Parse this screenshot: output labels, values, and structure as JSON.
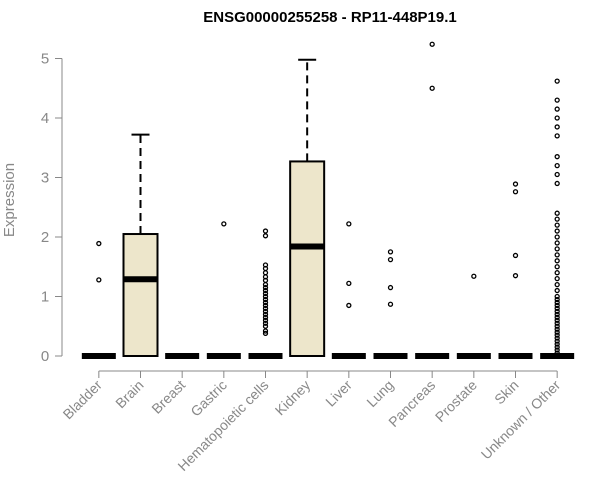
{
  "chart_data": {
    "type": "box",
    "title": "ENSG00000255258 - RP11-448P19.1",
    "xlabel": "",
    "ylabel": "Expression",
    "ylim": [
      0,
      5.25
    ],
    "yticks": [
      0,
      1,
      2,
      3,
      4,
      5
    ],
    "categories": [
      "Bladder",
      "Brain",
      "Breast",
      "Gastric",
      "Hematopoietic cells",
      "Kidney",
      "Liver",
      "Lung",
      "Pancreas",
      "Prostate",
      "Skin",
      "Unknown / Other"
    ],
    "box_fill": "#ede6cb",
    "boxes": [
      {
        "category": "Bladder",
        "min": 0,
        "q1": 0,
        "median": 0,
        "q3": 0,
        "max": 0,
        "outliers": [
          1.28,
          1.89
        ]
      },
      {
        "category": "Brain",
        "min": 0,
        "q1": 0,
        "median": 1.29,
        "q3": 2.05,
        "max": 3.72,
        "outliers": []
      },
      {
        "category": "Breast",
        "min": 0,
        "q1": 0,
        "median": 0,
        "q3": 0,
        "max": 0,
        "outliers": []
      },
      {
        "category": "Gastric",
        "min": 0,
        "q1": 0,
        "median": 0,
        "q3": 0,
        "max": 0,
        "outliers": [
          2.22
        ]
      },
      {
        "category": "Hematopoietic cells",
        "min": 0,
        "q1": 0,
        "median": 0,
        "q3": 0,
        "max": 0,
        "outliers": [
          0.38,
          0.42,
          0.5,
          0.55,
          0.6,
          0.65,
          0.7,
          0.75,
          0.8,
          0.85,
          0.9,
          0.95,
          1.0,
          1.05,
          1.1,
          1.15,
          1.2,
          1.27,
          1.33,
          1.4,
          1.47,
          1.53,
          2.02,
          2.1
        ]
      },
      {
        "category": "Kidney",
        "min": 0,
        "q1": 0,
        "median": 1.84,
        "q3": 3.27,
        "max": 4.98,
        "outliers": []
      },
      {
        "category": "Liver",
        "min": 0,
        "q1": 0,
        "median": 0,
        "q3": 0,
        "max": 0,
        "outliers": [
          0.85,
          1.22,
          2.22
        ]
      },
      {
        "category": "Lung",
        "min": 0,
        "q1": 0,
        "median": 0,
        "q3": 0,
        "max": 0,
        "outliers": [
          0.87,
          1.15,
          1.62,
          1.75
        ]
      },
      {
        "category": "Pancreas",
        "min": 0,
        "q1": 0,
        "median": 0,
        "q3": 0,
        "max": 0,
        "outliers": [
          4.5,
          5.24
        ]
      },
      {
        "category": "Prostate",
        "min": 0,
        "q1": 0,
        "median": 0,
        "q3": 0,
        "max": 0,
        "outliers": [
          1.34
        ]
      },
      {
        "category": "Skin",
        "min": 0,
        "q1": 0,
        "median": 0,
        "q3": 0,
        "max": 0,
        "outliers": [
          1.35,
          1.69,
          2.76,
          2.89
        ]
      },
      {
        "category": "Unknown / Other",
        "min": 0,
        "q1": 0,
        "median": 0,
        "q3": 0,
        "max": 0,
        "outliers": [
          0.05,
          0.1,
          0.15,
          0.2,
          0.25,
          0.3,
          0.35,
          0.4,
          0.45,
          0.5,
          0.55,
          0.6,
          0.65,
          0.7,
          0.75,
          0.8,
          0.85,
          0.9,
          0.95,
          1.0,
          1.1,
          1.2,
          1.3,
          1.4,
          1.5,
          1.6,
          1.7,
          1.8,
          1.9,
          2.0,
          2.1,
          2.2,
          2.3,
          2.4,
          2.9,
          3.05,
          3.2,
          3.35,
          3.7,
          3.85,
          4.0,
          4.15,
          4.3,
          4.62
        ]
      }
    ]
  }
}
